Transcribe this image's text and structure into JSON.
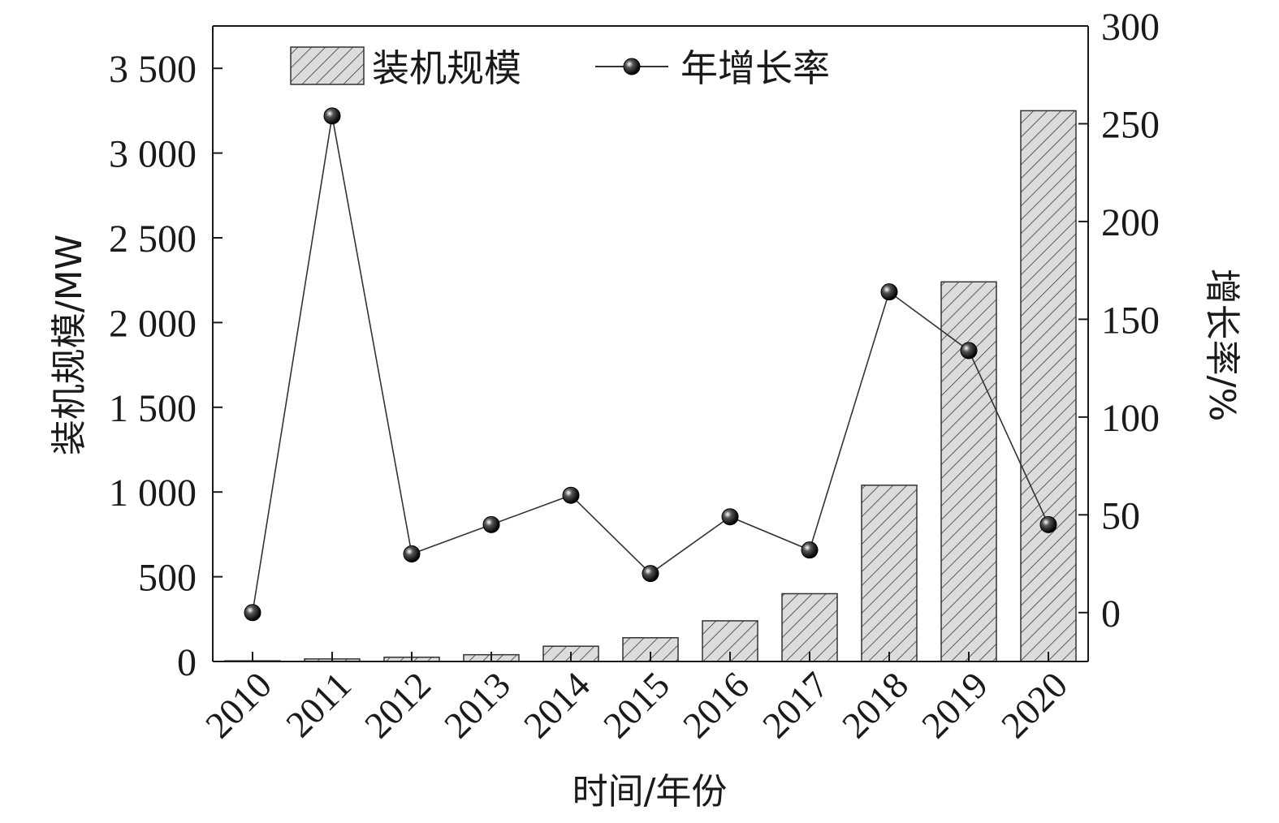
{
  "chart_data": {
    "type": "bar+line",
    "categories": [
      "2010",
      "2011",
      "2012",
      "2013",
      "2014",
      "2015",
      "2016",
      "2017",
      "2018",
      "2019",
      "2020"
    ],
    "series": [
      {
        "name": "装机规模",
        "type": "bar",
        "axis": "left",
        "values": [
          4,
          15,
          25,
          40,
          90,
          140,
          240,
          400,
          1040,
          2240,
          3250
        ]
      },
      {
        "name": "年增长率",
        "type": "line",
        "axis": "right",
        "values": [
          0,
          254,
          30,
          45,
          60,
          20,
          49,
          32,
          164,
          134,
          45
        ]
      }
    ],
    "xlabel": "时间/年份",
    "ylabel_left": "装机规模/MW",
    "ylabel_right": "增长率/%",
    "ylim_left": [
      0,
      3750
    ],
    "yticks_left": [
      0,
      500,
      1000,
      1500,
      2000,
      2500,
      3000,
      3500
    ],
    "yticks_left_labels": [
      "0",
      "500",
      "1 000",
      "1 500",
      "2 000",
      "2 500",
      "3 000",
      "3 500"
    ],
    "ylim_right": [
      -25,
      300
    ],
    "yticks_right": [
      0,
      50,
      100,
      150,
      200,
      250,
      300
    ],
    "yticks_right_labels": [
      "0",
      "50",
      "100",
      "150",
      "200",
      "250",
      "300"
    ],
    "legend_position": "top-left",
    "grid": false,
    "colors": {
      "bar_fill": "#dcdcdc",
      "bar_hatch": "#5a5a5a",
      "bar_stroke": "#333333",
      "line": "#333333",
      "marker": "#111111",
      "axis": "#1a1a1a"
    }
  }
}
